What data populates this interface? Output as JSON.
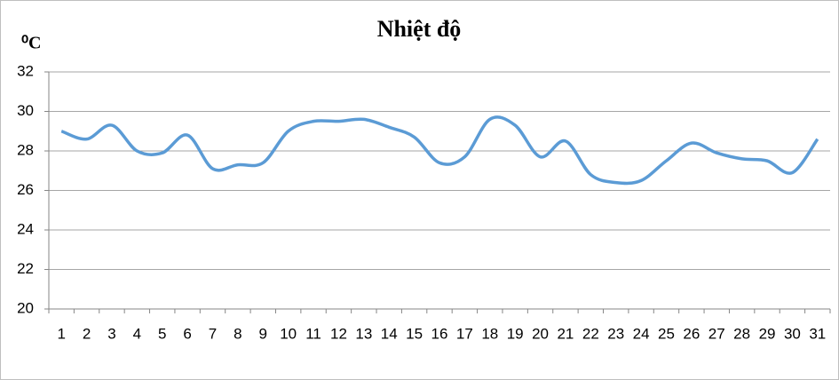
{
  "chart_data": {
    "type": "line",
    "title": "Nhiệt độ",
    "y_label": "⁰C",
    "categories": [
      "1",
      "2",
      "3",
      "4",
      "5",
      "6",
      "7",
      "8",
      "9",
      "10",
      "11",
      "12",
      "13",
      "14",
      "15",
      "16",
      "17",
      "18",
      "19",
      "20",
      "21",
      "22",
      "23",
      "24",
      "25",
      "26",
      "27",
      "28",
      "29",
      "30",
      "31"
    ],
    "series": [
      {
        "name": "Nhiệt độ",
        "color": "#5b9bd5",
        "values": [
          29.0,
          28.6,
          29.3,
          28.0,
          27.9,
          28.8,
          27.1,
          27.3,
          27.4,
          29.0,
          29.5,
          29.5,
          29.6,
          29.2,
          28.7,
          27.4,
          27.7,
          29.6,
          29.3,
          27.7,
          28.5,
          26.8,
          26.4,
          26.5,
          27.5,
          28.4,
          27.9,
          27.6,
          27.5,
          26.9,
          28.6
        ]
      }
    ],
    "ylim": [
      20,
      32
    ],
    "yticks": [
      20,
      22,
      24,
      26,
      28,
      30,
      32
    ],
    "grid": true,
    "smooth": true
  }
}
